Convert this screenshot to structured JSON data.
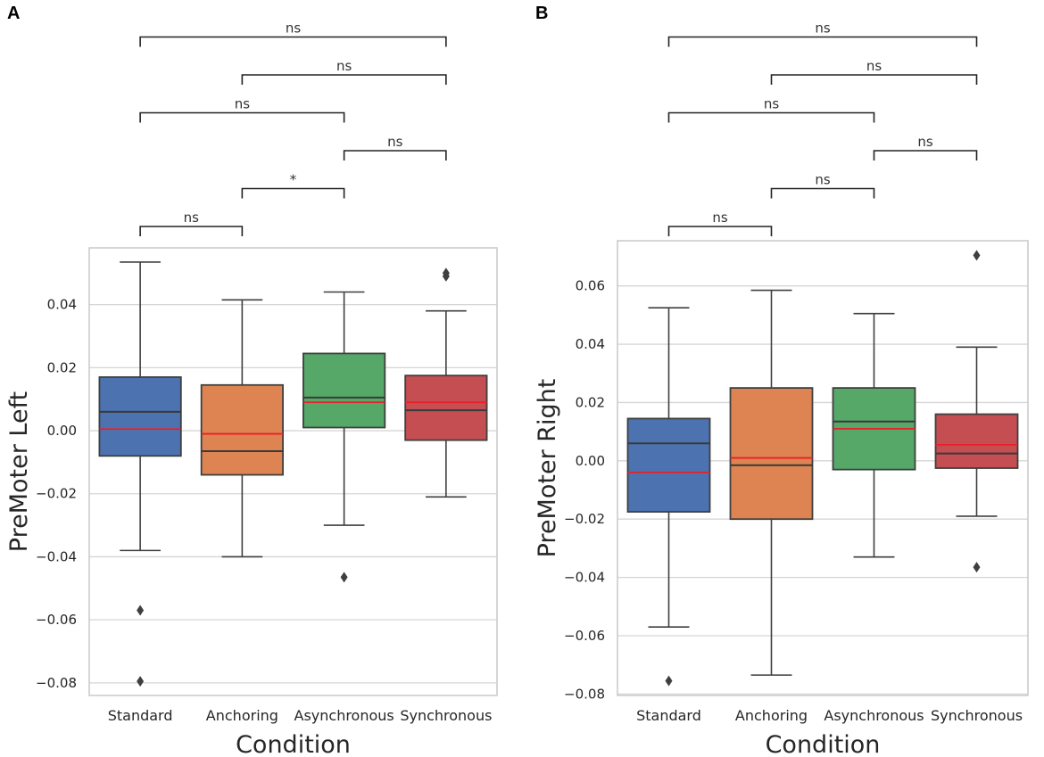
{
  "figure": {
    "panel_labels": [
      "A",
      "B"
    ]
  },
  "colors": {
    "Standard": "#4c72b0",
    "Anchoring": "#dd8452",
    "Asynchronous": "#55a868",
    "Synchronous": "#c44e52",
    "median_line": "#3a3a3a",
    "mean_line": "#e8202a",
    "grid": "#d6d6d6",
    "frame": "#cccccc"
  },
  "chart_data": [
    {
      "type": "box",
      "panel": "A",
      "xlabel": "Condition",
      "ylabel": "PreMoter Left",
      "categories": [
        "Standard",
        "Anchoring",
        "Asynchronous",
        "Synchronous"
      ],
      "ylim": [
        -0.084,
        0.058
      ],
      "yticks": [
        0.04,
        0.02,
        0.0,
        -0.02,
        -0.04,
        -0.06,
        -0.08
      ],
      "ytick_labels": [
        "0.04",
        "0.02",
        "0.00",
        "−0.02",
        "−0.04",
        "−0.06",
        "−0.08"
      ],
      "grid": true,
      "boxes": [
        {
          "category": "Standard",
          "whisker_low": -0.038,
          "q1": -0.008,
          "median": 0.006,
          "mean": 0.0005,
          "q3": 0.017,
          "whisker_high": 0.0535,
          "outliers": [
            -0.057,
            -0.0795
          ]
        },
        {
          "category": "Anchoring",
          "whisker_low": -0.04,
          "q1": -0.014,
          "median": -0.0065,
          "mean": -0.001,
          "q3": 0.0145,
          "whisker_high": 0.0415,
          "outliers": []
        },
        {
          "category": "Asynchronous",
          "whisker_low": -0.03,
          "q1": 0.001,
          "median": 0.0105,
          "mean": 0.009,
          "q3": 0.0245,
          "whisker_high": 0.044,
          "outliers": [
            -0.0465
          ]
        },
        {
          "category": "Synchronous",
          "whisker_low": -0.021,
          "q1": -0.003,
          "median": 0.0065,
          "mean": 0.009,
          "q3": 0.0175,
          "whisker_high": 0.038,
          "outliers": [
            0.049,
            0.05
          ]
        }
      ],
      "comparisons": [
        {
          "from": "Standard",
          "to": "Anchoring",
          "label": "ns",
          "level": 0
        },
        {
          "from": "Anchoring",
          "to": "Asynchronous",
          "label": "*",
          "level": 1
        },
        {
          "from": "Asynchronous",
          "to": "Synchronous",
          "label": "ns",
          "level": 2
        },
        {
          "from": "Standard",
          "to": "Asynchronous",
          "label": "ns",
          "level": 3
        },
        {
          "from": "Anchoring",
          "to": "Synchronous",
          "label": "ns",
          "level": 4
        },
        {
          "from": "Standard",
          "to": "Synchronous",
          "label": "ns",
          "level": 5
        }
      ]
    },
    {
      "type": "box",
      "panel": "B",
      "xlabel": "Condition",
      "ylabel": "PreMoter Right",
      "categories": [
        "Standard",
        "Anchoring",
        "Asynchronous",
        "Synchronous"
      ],
      "ylim": [
        -0.0805,
        0.0755
      ],
      "yticks": [
        0.06,
        0.04,
        0.02,
        0.0,
        -0.02,
        -0.04,
        -0.06,
        -0.08
      ],
      "ytick_labels": [
        "0.06",
        "0.04",
        "0.02",
        "0.00",
        "−0.02",
        "−0.04",
        "−0.06",
        "−0.08"
      ],
      "grid": true,
      "boxes": [
        {
          "category": "Standard",
          "whisker_low": -0.057,
          "q1": -0.0175,
          "median": 0.006,
          "mean": -0.004,
          "q3": 0.0145,
          "whisker_high": 0.0525,
          "outliers": [
            -0.0755
          ]
        },
        {
          "category": "Anchoring",
          "whisker_low": -0.0735,
          "q1": -0.02,
          "median": -0.0015,
          "mean": 0.001,
          "q3": 0.025,
          "whisker_high": 0.0585,
          "outliers": []
        },
        {
          "category": "Asynchronous",
          "whisker_low": -0.033,
          "q1": -0.003,
          "median": 0.0135,
          "mean": 0.011,
          "q3": 0.025,
          "whisker_high": 0.0505,
          "outliers": []
        },
        {
          "category": "Synchronous",
          "whisker_low": -0.019,
          "q1": -0.0025,
          "median": 0.0025,
          "mean": 0.0055,
          "q3": 0.016,
          "whisker_high": 0.039,
          "outliers": [
            0.0705,
            -0.0365
          ]
        }
      ],
      "comparisons": [
        {
          "from": "Standard",
          "to": "Anchoring",
          "label": "ns",
          "level": 0
        },
        {
          "from": "Anchoring",
          "to": "Asynchronous",
          "label": "ns",
          "level": 1
        },
        {
          "from": "Asynchronous",
          "to": "Synchronous",
          "label": "ns",
          "level": 2
        },
        {
          "from": "Standard",
          "to": "Asynchronous",
          "label": "ns",
          "level": 3
        },
        {
          "from": "Anchoring",
          "to": "Synchronous",
          "label": "ns",
          "level": 4
        },
        {
          "from": "Standard",
          "to": "Synchronous",
          "label": "ns",
          "level": 5
        }
      ]
    }
  ]
}
